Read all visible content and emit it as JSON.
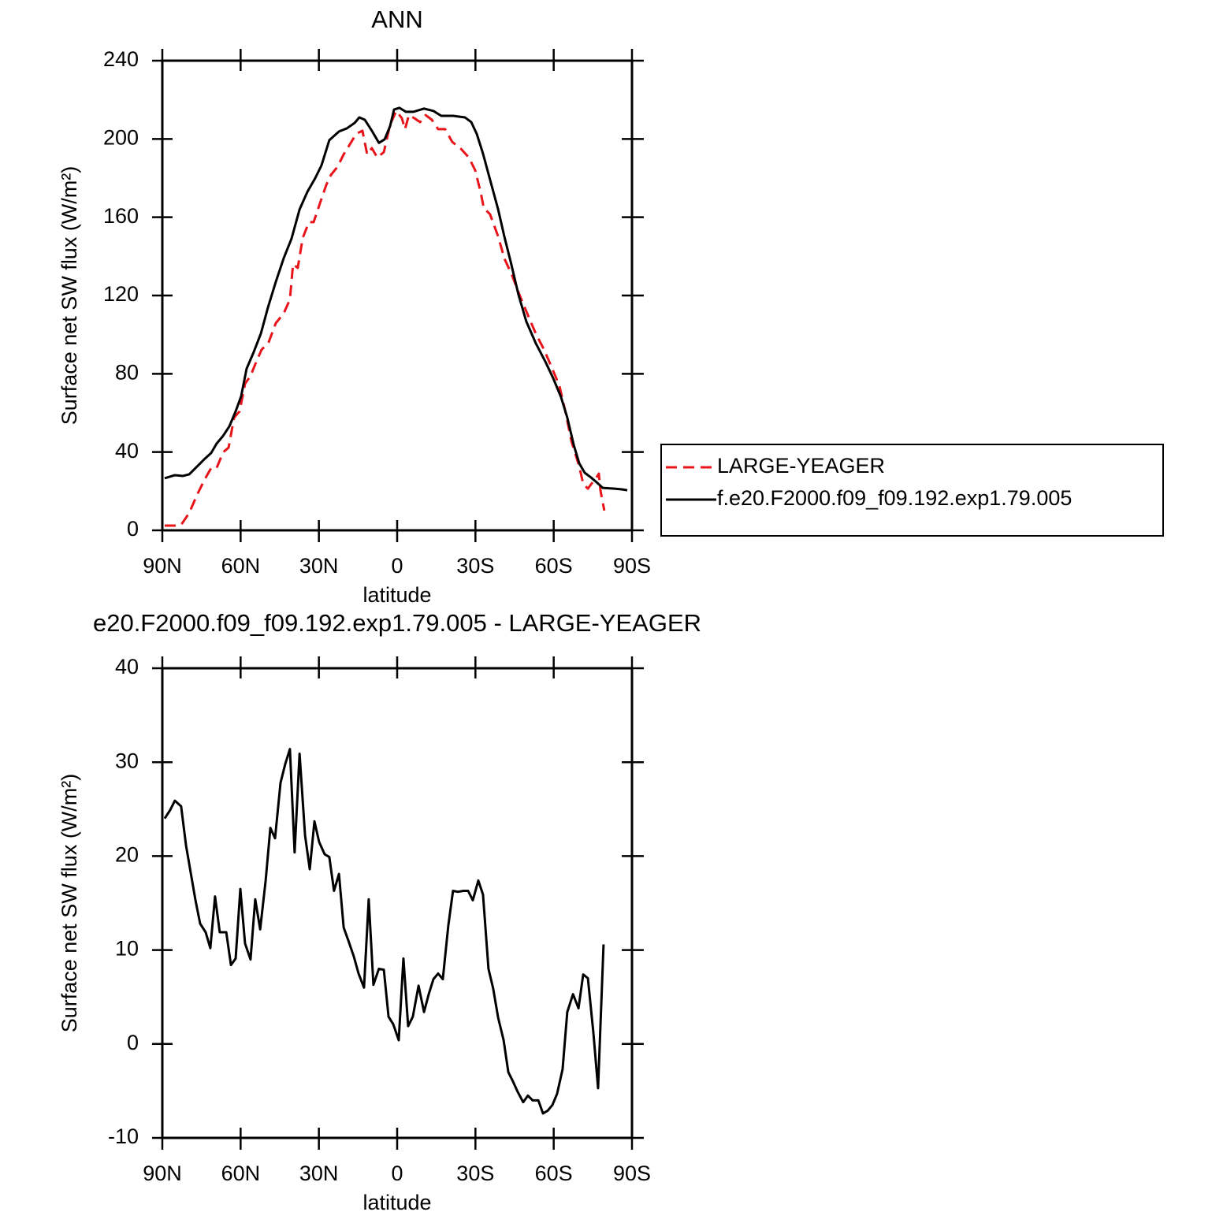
{
  "chart_data": [
    {
      "type": "line",
      "title": "ANN",
      "xlabel": "latitude",
      "ylabel": "Surface net SW flux (W/m²)",
      "xlim": [
        90,
        -90
      ],
      "xticks": [
        {
          "value": 90,
          "label": "90N"
        },
        {
          "value": 60,
          "label": "60N"
        },
        {
          "value": 30,
          "label": "30N"
        },
        0,
        {
          "value": -30,
          "label": "30S"
        },
        {
          "value": -60,
          "label": "60S"
        },
        {
          "value": -90,
          "label": "90S"
        }
      ],
      "ylim": [
        0,
        240
      ],
      "yticks": [
        0,
        40,
        80,
        120,
        160,
        200,
        240
      ],
      "legend": "right",
      "series": [
        {
          "name": "LARGE-YEAGER",
          "color": "#e8141a",
          "line_style": "dashed",
          "x": [
            89.1,
            85.2,
            82.8,
            79.7,
            76.7,
            73.7,
            71.3,
            69.2,
            66.7,
            64.6,
            62.5,
            60.4,
            58.3,
            56.2,
            54.1,
            52.0,
            49.2,
            46.5,
            43.5,
            41.1,
            39.9,
            38.1,
            36.2,
            33.8,
            32.0,
            29.6,
            27.2,
            25.4,
            22.9,
            20.5,
            18.1,
            15.7,
            13.3,
            11.5,
            9.7,
            7.6,
            5.1,
            2.7,
            0.3,
            -1.8,
            -3.0,
            -4.5,
            -6.6,
            -8.8,
            -10.9,
            -13.3,
            -15.7,
            -18.4,
            -21.1,
            -24.5,
            -27.5,
            -29.9,
            -32.0,
            -33.2,
            -35.6,
            -38.7,
            -41.1,
            -44.1,
            -47.1,
            -50.1,
            -53.2,
            -56.2,
            -59.2,
            -62.2,
            -64.6,
            -66.8,
            -68.3,
            -69.8,
            -71.3,
            -73.1,
            -74.9,
            -76.4,
            -77.3,
            -77.9,
            -79.4
          ],
          "values": [
            2.4,
            2.4,
            2.8,
            8.9,
            18.1,
            26.2,
            31.8,
            31.8,
            39.9,
            42.3,
            57.6,
            60.8,
            74.9,
            78.9,
            85.8,
            92.2,
            96.3,
            105.9,
            110.8,
            118,
            136,
            134.1,
            149.4,
            157.5,
            157.5,
            167.1,
            176.4,
            181.6,
            185.7,
            192.1,
            197.3,
            202.6,
            204.2,
            192.1,
            195.3,
            190.5,
            193.3,
            207.4,
            214.3,
            210.6,
            205,
            212.2,
            210.6,
            208.6,
            212.2,
            209.8,
            205,
            205,
            198.5,
            194.9,
            190.5,
            184,
            172.8,
            164.7,
            161.5,
            150.2,
            138.9,
            130.1,
            119.6,
            110,
            100.3,
            92.6,
            83.4,
            73.7,
            60,
            45.5,
            39.1,
            32.6,
            23.8,
            21.3,
            24.6,
            27,
            29,
            20.5,
            10.1
          ]
        },
        {
          "name": "f.e20.F2000.f09_f09.192.exp1.79.005",
          "color": "#000000",
          "line_style": "solid",
          "x": [
            89.1,
            85.2,
            82.1,
            79.7,
            76.7,
            73.7,
            71.3,
            69.2,
            66.7,
            64.3,
            61.9,
            59.8,
            57.7,
            55.0,
            52.2,
            49.5,
            46.5,
            43.5,
            40.5,
            37.4,
            34.4,
            31.4,
            29.0,
            26.0,
            22.3,
            19.3,
            16.3,
            14.5,
            12.4,
            9.7,
            7.0,
            4.8,
            2.7,
            1.2,
            -0.9,
            -3.3,
            -6.3,
            -10.3,
            -13.9,
            -16.9,
            -21.4,
            -26.0,
            -28.4,
            -30.5,
            -32.9,
            -35.6,
            -38.7,
            -41.1,
            -43.5,
            -46.5,
            -49.5,
            -53.2,
            -56.8,
            -59.8,
            -62.8,
            -65.2,
            -67.7,
            -69.8,
            -71.9,
            -74.3,
            -76.4,
            -78.8,
            -83.4,
            -86.4,
            -88.2
          ],
          "values": [
            26.6,
            28.2,
            27.8,
            28.6,
            32.6,
            36.6,
            39.5,
            44.3,
            48.3,
            53.2,
            60.8,
            68.5,
            82.6,
            91,
            100.7,
            114,
            127,
            139,
            149,
            164,
            173,
            180,
            186.5,
            199.4,
            203.8,
            205.4,
            208.2,
            211,
            209.8,
            204.2,
            198,
            199.8,
            206.6,
            215,
            215.9,
            213.9,
            213.9,
            215.5,
            214.3,
            211.8,
            211.8,
            211,
            208.6,
            202.6,
            192.5,
            179.2,
            164,
            150,
            137.3,
            120.4,
            106.7,
            95.4,
            86.2,
            77.7,
            68.1,
            57.6,
            43.5,
            34.2,
            29.4,
            27,
            24.6,
            21.7,
            21.3,
            20.9,
            20.5
          ]
        }
      ]
    },
    {
      "type": "line",
      "title": "e20.F2000.f09_f09.192.exp1.79.005 - LARGE-YEAGER",
      "xlabel": "latitude",
      "ylabel": "Surface net SW flux (W/m²)",
      "xlim": [
        90,
        -90
      ],
      "xticks": [
        {
          "value": 90,
          "label": "90N"
        },
        {
          "value": 60,
          "label": "60N"
        },
        {
          "value": 30,
          "label": "30N"
        },
        0,
        {
          "value": -30,
          "label": "30S"
        },
        {
          "value": -60,
          "label": "60S"
        },
        {
          "value": -90,
          "label": "90S"
        }
      ],
      "ylim": [
        -10,
        40
      ],
      "yticks": [
        -10,
        0,
        10,
        20,
        30,
        40
      ],
      "color": "#000000",
      "x": [
        89.1,
        87.0,
        85.2,
        82.8,
        80.9,
        79.1,
        77.3,
        75.5,
        73.4,
        71.6,
        69.8,
        68.0,
        65.5,
        63.7,
        61.9,
        60.1,
        58.3,
        56.2,
        54.4,
        52.5,
        50.4,
        48.6,
        46.8,
        44.7,
        42.9,
        41.1,
        39.3,
        37.4,
        35.3,
        33.5,
        31.7,
        29.9,
        27.8,
        26.0,
        24.2,
        22.3,
        20.5,
        18.7,
        16.6,
        14.8,
        12.7,
        10.9,
        9.1,
        7.0,
        5.1,
        3.3,
        1.5,
        -0.6,
        -2.4,
        -4.2,
        -6.0,
        -8.2,
        -10.3,
        -12.1,
        -13.9,
        -15.7,
        -17.5,
        -19.6,
        -21.4,
        -23.3,
        -25.4,
        -27.2,
        -29.0,
        -31.1,
        -32.9,
        -35.0,
        -36.8,
        -38.7,
        -40.8,
        -42.6,
        -44.4,
        -46.2,
        -48.3,
        -50.1,
        -51.9,
        -54.1,
        -55.9,
        -57.7,
        -59.5,
        -61.3,
        -63.4,
        -65.2,
        -67.4,
        -69.5,
        -71.3,
        -73.1,
        -75.2,
        -77.0,
        -79.1
      ],
      "values": [
        24.0,
        24.9,
        25.9,
        25.3,
        21.1,
        18.2,
        15.3,
        12.8,
        11.9,
        10.2,
        15.7,
        11.9,
        11.9,
        8.4,
        9.1,
        16.5,
        10.7,
        9.0,
        15.4,
        12.2,
        17.4,
        23.0,
        21.9,
        27.8,
        29.8,
        31.4,
        20.4,
        30.9,
        22.2,
        18.6,
        23.7,
        21.5,
        20.2,
        19.9,
        16.3,
        18.1,
        12.4,
        11.0,
        9.3,
        7.5,
        6.0,
        15.4,
        6.3,
        8.0,
        7.9,
        2.9,
        2.1,
        0.4,
        9.1,
        1.9,
        2.9,
        6.2,
        3.4,
        5.3,
        6.9,
        7.5,
        6.9,
        12.6,
        16.3,
        16.2,
        16.3,
        16.3,
        15.3,
        17.4,
        15.9,
        8.0,
        5.9,
        2.8,
        0.4,
        -3.0,
        -4.0,
        -5.1,
        -6.2,
        -5.5,
        -6.0,
        -6.0,
        -7.4,
        -7.1,
        -6.5,
        -5.3,
        -2.7,
        3.4,
        5.3,
        3.8,
        7.4,
        7.0,
        1.2,
        -4.7,
        10.6
      ]
    }
  ]
}
